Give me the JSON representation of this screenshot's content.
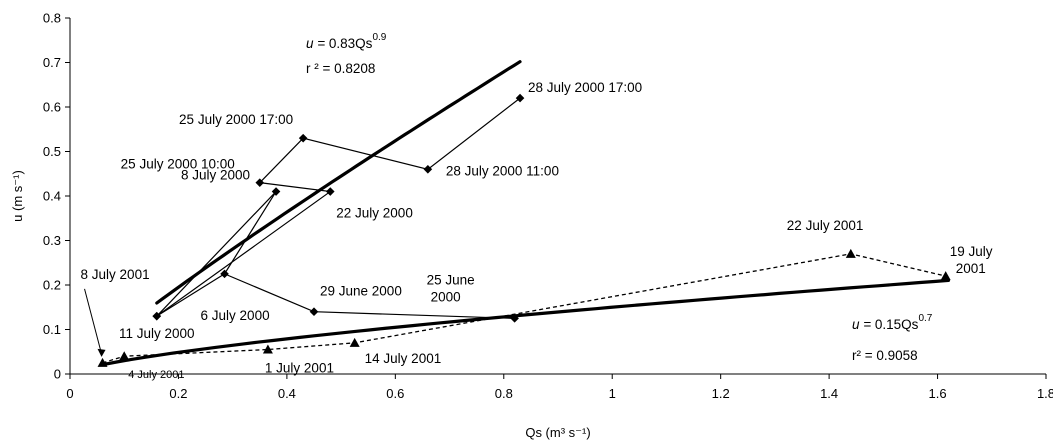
{
  "chart_data": {
    "type": "scatter",
    "xlabel": "Qs (m³ s⁻¹)",
    "ylabel": "u (m s⁻¹)",
    "xlim": [
      0,
      1.8
    ],
    "ylim": [
      0,
      0.8
    ],
    "xticks": [
      "0",
      "0.2",
      "0.4",
      "0.6",
      "0.8",
      "1",
      "1.2",
      "1.4",
      "1.6",
      "1.8"
    ],
    "yticks": [
      "0",
      "0.1",
      "0.2",
      "0.3",
      "0.4",
      "0.5",
      "0.6",
      "0.7",
      "0.8"
    ],
    "grid": false,
    "legend": "none",
    "series": [
      {
        "marker": "diamond",
        "line": "solid",
        "points": [
          {
            "x": 0.16,
            "y": 0.13,
            "label": "11 July 2000"
          },
          {
            "x": 0.38,
            "y": 0.41,
            "label": "8 July 2000"
          },
          {
            "x": 0.16,
            "y": 0.13,
            "label": ""
          },
          {
            "x": 0.48,
            "y": 0.41,
            "label": "22 July 2000"
          },
          {
            "x": 0.35,
            "y": 0.43,
            "label": "25 July 2000 10:00"
          },
          {
            "x": 0.43,
            "y": 0.53,
            "label": "25 July 2000 17:00"
          },
          {
            "x": 0.66,
            "y": 0.46,
            "label": "28 July 2000 11:00"
          },
          {
            "x": 0.83,
            "y": 0.62,
            "label": "28 July 2000 17:00"
          }
        ],
        "extra_segment": [
          {
            "x": 0.285,
            "y": 0.225,
            "label": "6 July 2000"
          },
          {
            "x": 0.45,
            "y": 0.14,
            "label": "29 June 2000"
          },
          {
            "x": 0.82,
            "y": 0.125,
            "label": "25 June 2000"
          }
        ]
      },
      {
        "marker": "triangle",
        "line": "dashed",
        "points": [
          {
            "x": 0.06,
            "y": 0.025,
            "label": "8 July 2001"
          },
          {
            "x": 0.1,
            "y": 0.04,
            "label": "4 July 2001"
          },
          {
            "x": 0.365,
            "y": 0.055,
            "label": "1 July 2001"
          },
          {
            "x": 0.525,
            "y": 0.07,
            "label": "14 July 2001"
          },
          {
            "x": 1.44,
            "y": 0.27,
            "label": "22 July 2001"
          },
          {
            "x": 1.615,
            "y": 0.22,
            "label": "19 July 2001"
          }
        ]
      }
    ],
    "fits": [
      {
        "a": 0.83,
        "b": 0.9,
        "xrange": [
          0.16,
          0.83
        ],
        "label_eq": "u = 0.83Qs",
        "exp": "0.9",
        "label_r2": "r ² = 0.8208"
      },
      {
        "a": 0.15,
        "b": 0.7,
        "xrange": [
          0.06,
          1.62
        ],
        "label_eq": "u = 0.15Qs",
        "exp": "0.7",
        "label_r2": "r² = 0.9058"
      }
    ]
  }
}
